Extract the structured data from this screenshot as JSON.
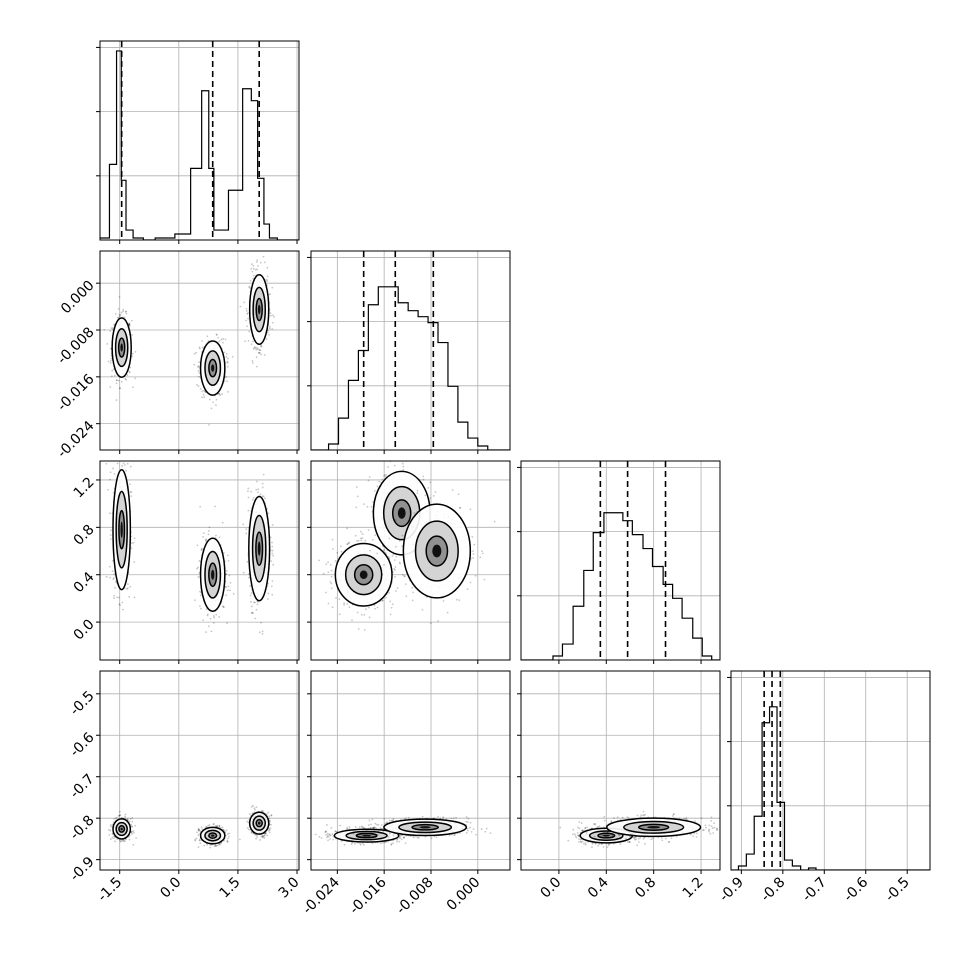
{
  "chart_data": {
    "type": "corner",
    "grid": true,
    "colors": {
      "line": "#000000",
      "fill": "#000000",
      "grid": "#b0b0b0"
    },
    "parameters": [
      {
        "range": [
          -2.0,
          3.05
        ],
        "ticks": [
          "-1.5",
          "0.0",
          "1.5",
          "3.0"
        ],
        "tick_values": [
          -1.5,
          0.0,
          1.5,
          3.0
        ],
        "quantiles": [
          -1.45,
          0.86,
          2.04
        ]
      },
      {
        "range": [
          -0.0285,
          0.0055
        ],
        "ticks": [
          "-0.024",
          "-0.016",
          "-0.008",
          "0.000"
        ],
        "tick_values": [
          -0.024,
          -0.016,
          -0.008,
          0.0
        ],
        "quantiles": [
          -0.0195,
          -0.0141,
          -0.0076
        ]
      },
      {
        "range": [
          -0.32,
          1.36
        ],
        "ticks": [
          "0.0",
          "0.4",
          "0.8",
          "1.2"
        ],
        "tick_values": [
          0.0,
          0.4,
          0.8,
          1.2
        ],
        "quantiles": [
          0.35,
          0.58,
          0.9
        ]
      },
      {
        "range": [
          -0.925,
          -0.445
        ],
        "ticks": [
          "-0.9",
          "-0.8",
          "-0.7",
          "-0.6",
          "-0.5"
        ],
        "tick_values": [
          -0.9,
          -0.8,
          -0.7,
          -0.6,
          -0.5
        ],
        "quantiles": [
          -0.845,
          -0.826,
          -0.806
        ]
      }
    ],
    "histograms": [
      {
        "param": 0,
        "edges": [
          -2.0,
          -1.76,
          -1.58,
          -1.46,
          -1.34,
          -1.16,
          -0.9,
          -0.6,
          -0.1,
          0.3,
          0.58,
          0.76,
          0.89,
          1.03,
          1.26,
          1.62,
          1.84,
          2.0,
          2.16,
          2.3,
          2.5,
          2.7,
          3.05
        ],
        "counts": [
          0.01,
          0.38,
          0.95,
          0.3,
          0.05,
          0.01,
          0.0,
          0.01,
          0.03,
          0.36,
          0.75,
          0.36,
          0.05,
          0.05,
          0.25,
          0.76,
          0.7,
          0.31,
          0.08,
          0.01,
          0.0,
          0.0
        ]
      },
      {
        "param": 1,
        "edges": [
          -0.0285,
          -0.0255,
          -0.0238,
          -0.0221,
          -0.0204,
          -0.0187,
          -0.017,
          -0.0153,
          -0.0136,
          -0.0119,
          -0.0102,
          -0.0085,
          -0.0068,
          -0.0051,
          -0.0034,
          -0.0017,
          0.0,
          0.0017,
          0.0055
        ],
        "counts": [
          0.0,
          0.03,
          0.16,
          0.35,
          0.5,
          0.73,
          0.82,
          0.82,
          0.74,
          0.7,
          0.67,
          0.64,
          0.54,
          0.32,
          0.14,
          0.06,
          0.02,
          0.0
        ]
      },
      {
        "param": 2,
        "edges": [
          -0.32,
          -0.05,
          0.03,
          0.12,
          0.21,
          0.29,
          0.38,
          0.46,
          0.54,
          0.62,
          0.71,
          0.79,
          0.88,
          0.96,
          1.04,
          1.13,
          1.21,
          1.29,
          1.36
        ],
        "counts": [
          0.0,
          0.02,
          0.08,
          0.27,
          0.45,
          0.64,
          0.74,
          0.74,
          0.7,
          0.63,
          0.56,
          0.47,
          0.38,
          0.31,
          0.21,
          0.11,
          0.02,
          0.0
        ]
      },
      {
        "param": 3,
        "edges": [
          -0.925,
          -0.907,
          -0.888,
          -0.869,
          -0.85,
          -0.832,
          -0.814,
          -0.796,
          -0.777,
          -0.757,
          -0.738,
          -0.72,
          -0.445
        ],
        "counts": [
          0.0,
          0.02,
          0.08,
          0.27,
          0.74,
          0.82,
          0.34,
          0.05,
          0.02,
          0.0,
          0.01,
          0.0
        ]
      }
    ],
    "scatter_panels": [
      {
        "x": 0,
        "y": 1,
        "modes": [
          {
            "cx": -1.45,
            "cy": -0.011,
            "sx": 0.11,
            "sy": 0.0023,
            "w": 0.32
          },
          {
            "cx": 0.86,
            "cy": -0.0145,
            "sx": 0.14,
            "sy": 0.0021,
            "w": 0.34
          },
          {
            "cx": 2.04,
            "cy": -0.0045,
            "sx": 0.11,
            "sy": 0.0027,
            "w": 0.34
          }
        ]
      },
      {
        "x": 0,
        "y": 2,
        "modes": [
          {
            "cx": -1.45,
            "cy": 0.78,
            "sx": 0.1,
            "sy": 0.23,
            "w": 0.32
          },
          {
            "cx": 0.86,
            "cy": 0.4,
            "sx": 0.14,
            "sy": 0.14,
            "w": 0.34
          },
          {
            "cx": 2.04,
            "cy": 0.62,
            "sx": 0.12,
            "sy": 0.2,
            "w": 0.34
          }
        ]
      },
      {
        "x": 0,
        "y": 3,
        "modes": [
          {
            "cx": -1.45,
            "cy": -0.826,
            "sx": 0.1,
            "sy": 0.011,
            "w": 0.32
          },
          {
            "cx": 0.86,
            "cy": -0.842,
            "sx": 0.14,
            "sy": 0.009,
            "w": 0.34
          },
          {
            "cx": 2.04,
            "cy": -0.812,
            "sx": 0.11,
            "sy": 0.012,
            "w": 0.34
          }
        ]
      },
      {
        "x": 1,
        "y": 2,
        "modes": [
          {
            "cx": -0.0195,
            "cy": 0.4,
            "sx": 0.0022,
            "sy": 0.12,
            "w": 0.4
          },
          {
            "cx": -0.013,
            "cy": 0.92,
            "sx": 0.0022,
            "sy": 0.16,
            "w": 0.3
          },
          {
            "cx": -0.007,
            "cy": 0.6,
            "sx": 0.0026,
            "sy": 0.18,
            "w": 0.3
          }
        ]
      },
      {
        "x": 1,
        "y": 3,
        "modes": [
          {
            "cx": -0.019,
            "cy": -0.842,
            "sx": 0.0025,
            "sy": 0.007,
            "w": 0.5
          },
          {
            "cx": -0.009,
            "cy": -0.822,
            "sx": 0.0032,
            "sy": 0.009,
            "w": 0.5
          }
        ]
      },
      {
        "x": 2,
        "y": 3,
        "modes": [
          {
            "cx": 0.4,
            "cy": -0.842,
            "sx": 0.1,
            "sy": 0.008,
            "w": 0.5
          },
          {
            "cx": 0.8,
            "cy": -0.822,
            "sx": 0.18,
            "sy": 0.01,
            "w": 0.5
          }
        ]
      }
    ]
  }
}
